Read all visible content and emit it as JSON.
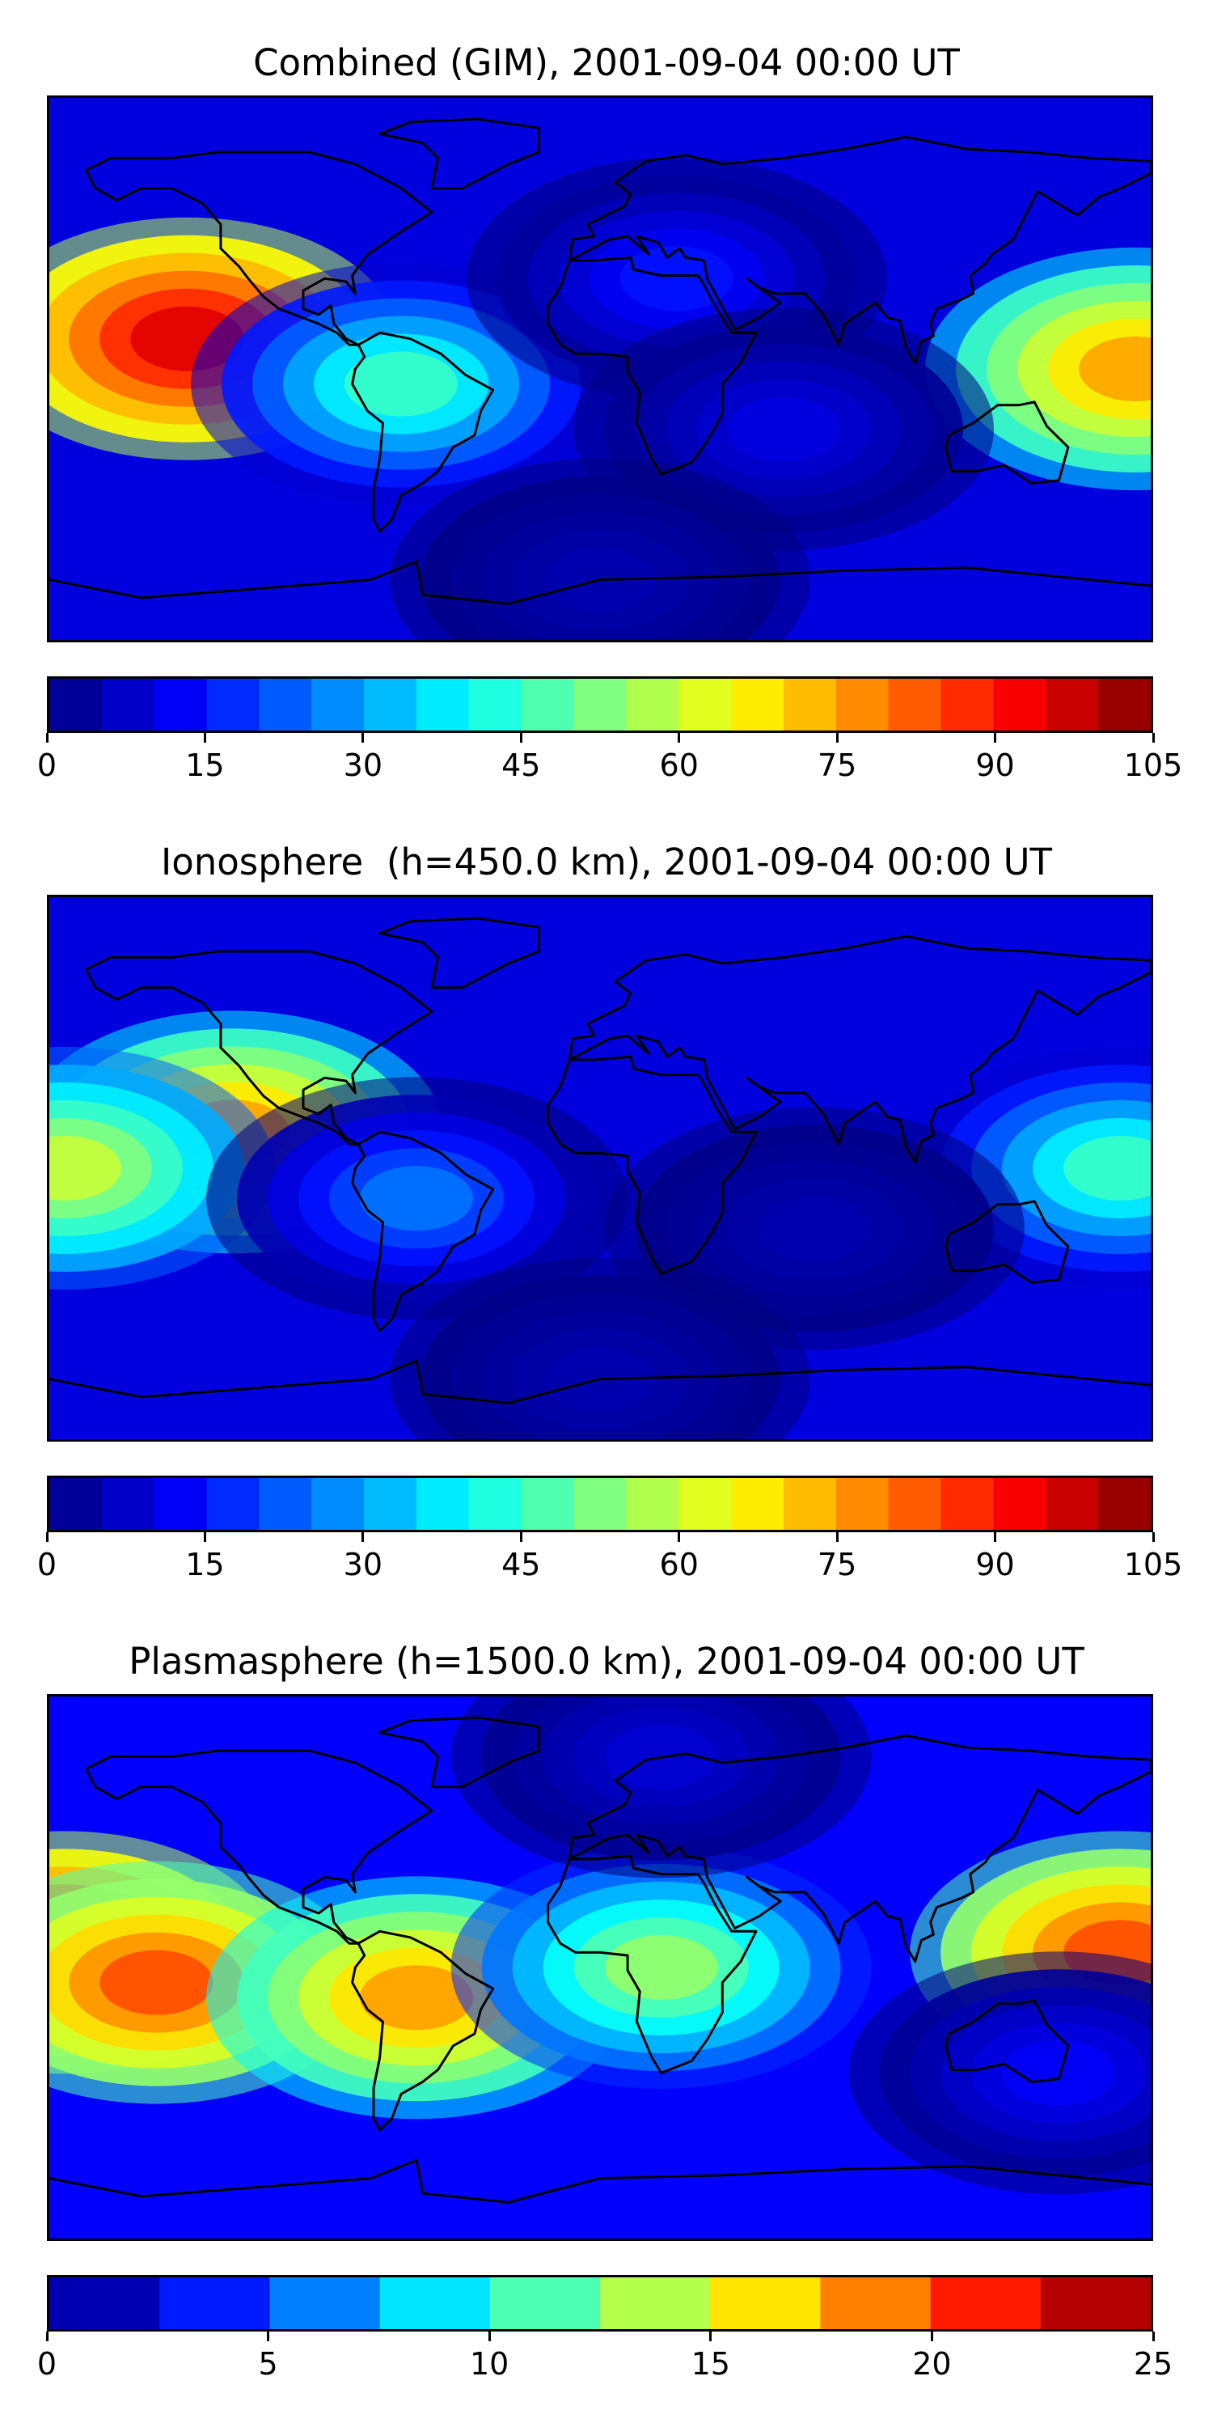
{
  "chart_data": [
    {
      "type": "heatmap",
      "title": "Combined (GIM), 2001-09-04 00:00 UT",
      "colorbar": {
        "min": 0,
        "max": 105,
        "step": 5,
        "ticks": [
          0,
          15,
          30,
          45,
          60,
          75,
          90,
          105
        ]
      },
      "features": [
        {
          "lon": -135,
          "lat": 10,
          "level": 95
        },
        {
          "lon": 175,
          "lat": 0,
          "level": 75
        },
        {
          "lon": -65,
          "lat": -5,
          "level": 45
        },
        {
          "lon": 25,
          "lat": 30,
          "level": 15
        },
        {
          "lon": 60,
          "lat": -20,
          "level": 10
        },
        {
          "lon": 0,
          "lat": -70,
          "level": 5
        }
      ]
    },
    {
      "type": "heatmap",
      "title": "Ionosphere  (h=450.0 km), 2001-09-04 00:00 UT",
      "colorbar": {
        "min": 0,
        "max": 105,
        "step": 5,
        "ticks": [
          0,
          15,
          30,
          45,
          60,
          75,
          90,
          105
        ]
      },
      "features": [
        {
          "lon": -120,
          "lat": 12,
          "level": 75
        },
        {
          "lon": -175,
          "lat": 0,
          "level": 60
        },
        {
          "lon": 170,
          "lat": 0,
          "level": 45
        },
        {
          "lon": -60,
          "lat": -10,
          "level": 25
        },
        {
          "lon": 70,
          "lat": -20,
          "level": 5
        },
        {
          "lon": 0,
          "lat": -70,
          "level": 5
        }
      ]
    },
    {
      "type": "heatmap",
      "title": "Plasmasphere (h=1500.0 km), 2001-09-04 00:00 UT",
      "colorbar": {
        "min": 0,
        "max": 25,
        "step": 2.5,
        "ticks": [
          0,
          5,
          10,
          15,
          20,
          25
        ]
      },
      "features": [
        {
          "lon": -175,
          "lat": 5,
          "level": 22.5
        },
        {
          "lon": -145,
          "lat": -5,
          "level": 20
        },
        {
          "lon": -60,
          "lat": -10,
          "level": 18
        },
        {
          "lon": 170,
          "lat": 5,
          "level": 20
        },
        {
          "lon": 20,
          "lat": 0,
          "level": 13
        },
        {
          "lon": 150,
          "lat": -35,
          "level": 3
        },
        {
          "lon": 20,
          "lat": 70,
          "level": 2
        }
      ]
    }
  ]
}
